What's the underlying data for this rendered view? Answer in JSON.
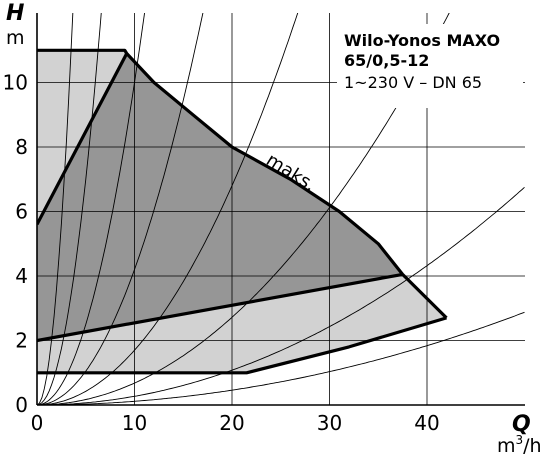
{
  "chart_data": {
    "type": "area",
    "title_lines": [
      "Wilo-Yonos MAXO",
      "65/0,5-12"
    ],
    "subtitle": "1~230 V – DN 65",
    "x_symbol": "Q",
    "x_unit_main": "m",
    "x_unit_sup": "3",
    "x_unit_tail": "/h",
    "y_symbol": "H",
    "y_unit": "m",
    "xlim": [
      0,
      50
    ],
    "ylim": [
      0,
      12
    ],
    "x_ticks": [
      0,
      10,
      20,
      30,
      40
    ],
    "y_ticks": [
      0,
      2,
      4,
      6,
      8,
      10
    ],
    "grid": true,
    "curve_label": "maks.",
    "colors": {
      "light_region": "#d2d2d2",
      "dark_region": "#969696",
      "curve": "#000000",
      "grid": "#000000",
      "background": "#ffffff"
    },
    "regions": {
      "light_outer": [
        [
          0,
          11
        ],
        [
          9,
          11
        ],
        [
          9.2,
          10.9
        ],
        [
          12,
          10
        ],
        [
          16,
          9
        ],
        [
          20,
          8
        ],
        [
          26,
          7
        ],
        [
          31,
          6
        ],
        [
          35,
          5
        ],
        [
          37.5,
          4.05
        ],
        [
          42,
          2.7
        ],
        [
          32,
          1.8
        ],
        [
          21.5,
          1
        ],
        [
          0,
          1
        ]
      ],
      "dark_mid": [
        [
          0,
          5.6
        ],
        [
          9.2,
          10.9
        ],
        [
          12,
          10
        ],
        [
          16,
          9
        ],
        [
          20,
          8
        ],
        [
          26,
          7
        ],
        [
          31,
          6
        ],
        [
          35,
          5
        ],
        [
          37.5,
          4.05
        ],
        [
          0,
          2
        ]
      ]
    },
    "lines": [
      {
        "points": [
          [
            0,
            11
          ],
          [
            9,
            11
          ],
          [
            9.2,
            10.9
          ],
          [
            12,
            10
          ],
          [
            16,
            9
          ],
          [
            20,
            8
          ],
          [
            26,
            7
          ],
          [
            31,
            6
          ],
          [
            35,
            5
          ],
          [
            37.5,
            4.05
          ],
          [
            42,
            2.7
          ]
        ]
      },
      {
        "points": [
          [
            0,
            5.6
          ],
          [
            9.2,
            10.9
          ]
        ]
      },
      {
        "points": [
          [
            0,
            2
          ],
          [
            37.5,
            4.05
          ]
        ]
      },
      {
        "points": [
          [
            0,
            1
          ],
          [
            21.5,
            1
          ],
          [
            32,
            1.8
          ],
          [
            42,
            2.7
          ]
        ]
      }
    ],
    "system_curves_k": [
      0.9,
      0.28,
      0.1,
      0.042,
      0.017,
      0.0068,
      0.0027,
      0.00115
    ]
  }
}
